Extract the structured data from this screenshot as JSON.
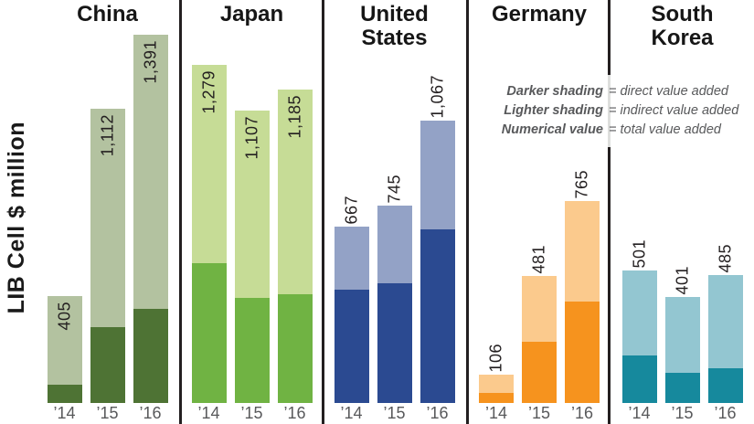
{
  "chart_data": {
    "type": "bar",
    "subtype": "stacked-bars-in-country-panels",
    "ylabel": "LIB Cell $ million",
    "unit": "$ million",
    "value_axis_visible": false,
    "years": [
      "’14",
      "’15",
      "’16"
    ],
    "legend": [
      {
        "term": "Darker shading",
        "rest": "= direct value added"
      },
      {
        "term": "Lighter shading",
        "rest": "= indirect value added"
      },
      {
        "term": "Numerical value",
        "rest": "= total value added"
      }
    ],
    "panels": [
      {
        "country": "China",
        "header_lines": [
          "China"
        ],
        "color_dark": "#4e7334",
        "color_light": "#b3c2a0",
        "totals": [
          405,
          1112,
          1391
        ],
        "total_labels": [
          "405",
          "1,112",
          "1,391"
        ],
        "direct_estimated": [
          70,
          287,
          355
        ],
        "label_placement": "inside"
      },
      {
        "country": "Japan",
        "header_lines": [
          "Japan"
        ],
        "color_dark": "#70b343",
        "color_light": "#c6dc96",
        "totals": [
          1279,
          1107,
          1185
        ],
        "total_labels": [
          "1,279",
          "1,107",
          "1,185"
        ],
        "direct_estimated": [
          527,
          397,
          411
        ],
        "label_placement": "inside"
      },
      {
        "country": "United States",
        "header_lines": [
          "United",
          "States"
        ],
        "color_dark": "#2b4a91",
        "color_light": "#93a2c6",
        "totals": [
          667,
          745,
          1067
        ],
        "total_labels": [
          "667",
          "745",
          "1,067"
        ],
        "direct_estimated": [
          428,
          452,
          657
        ],
        "label_placement": "above"
      },
      {
        "country": "Germany",
        "header_lines": [
          "Germany"
        ],
        "color_dark": "#f6931e",
        "color_light": "#fbca8d",
        "totals": [
          106,
          481,
          765
        ],
        "total_labels": [
          "106",
          "481",
          "765"
        ],
        "direct_estimated": [
          38,
          231,
          383
        ],
        "label_placement": "above"
      },
      {
        "country": "South Korea",
        "header_lines": [
          "South",
          "Korea"
        ],
        "color_dark": "#16899d",
        "color_light": "#93c6d1",
        "totals": [
          501,
          401,
          485
        ],
        "total_labels": [
          "501",
          "401",
          "485"
        ],
        "direct_estimated": [
          180,
          114,
          131
        ],
        "label_placement": "above"
      }
    ]
  }
}
